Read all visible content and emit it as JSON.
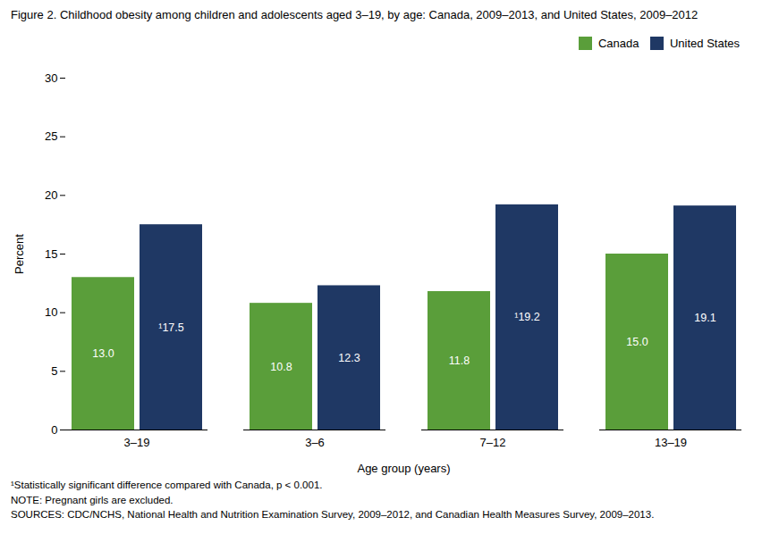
{
  "chart_data": {
    "type": "bar",
    "title": "Figure 2. Childhood obesity among children and adolescents aged 3–19, by age: Canada, 2009–2013, and United States, 2009–2012",
    "categories": [
      "3–19",
      "3–6",
      "7–12",
      "13–19"
    ],
    "series": [
      {
        "name": "Canada",
        "color": "#5a9e3a",
        "values": [
          13.0,
          10.8,
          11.8,
          15.0
        ],
        "value_labels": [
          "13.0",
          "10.8",
          "11.8",
          "15.0"
        ]
      },
      {
        "name": "United States",
        "color": "#1f3864",
        "values": [
          17.5,
          12.3,
          19.2,
          19.1
        ],
        "value_labels": [
          "¹17.5",
          "12.3",
          "¹19.2",
          "19.1"
        ]
      }
    ],
    "xlabel": "Age group (years)",
    "ylabel": "Percent",
    "ylim": [
      0,
      30
    ],
    "yticks": [
      0,
      5,
      10,
      15,
      20,
      25,
      30
    ],
    "grid": false,
    "legend": "upper right",
    "data_labels": true,
    "annotations": [
      "¹Statistically significant difference compared with Canada, p < 0.001.",
      "NOTE: Pregnant girls are excluded.",
      "SOURCES: CDC/NCHS, National Health and Nutrition Examination Survey, 2009–2012, and Canadian Health Measures Survey, 2009–2013."
    ]
  }
}
